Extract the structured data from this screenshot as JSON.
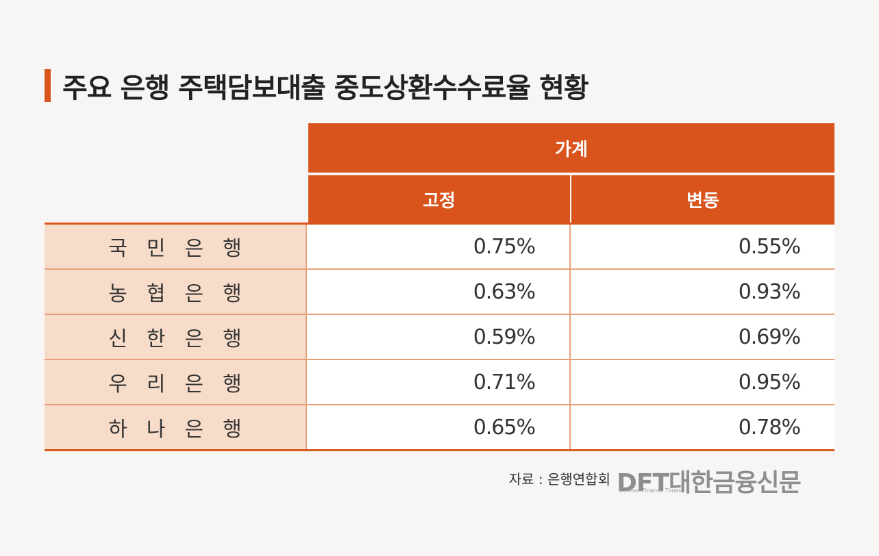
{
  "title": "주요 은행 주택담보대출 중도상환수수료율 현황",
  "colors": {
    "accent": "#d9531c",
    "header_bg": "#d9531c",
    "bank_cell_bg": "#f6dcc9",
    "value_cell_bg": "#ffffff"
  },
  "chart_data": {
    "type": "table",
    "title": "주요 은행 주택담보대출 중도상환수수료율 현황",
    "header_group": "가계",
    "columns": [
      "고정",
      "변동"
    ],
    "rows": [
      {
        "bank": "국민은행",
        "fixed": "0.75%",
        "variable": "0.55%"
      },
      {
        "bank": "농협은행",
        "fixed": "0.63%",
        "variable": "0.93%"
      },
      {
        "bank": "신한은행",
        "fixed": "0.59%",
        "variable": "0.69%"
      },
      {
        "bank": "우리은행",
        "fixed": "0.71%",
        "variable": "0.95%"
      },
      {
        "bank": "하나은행",
        "fixed": "0.65%",
        "variable": "0.78%"
      }
    ]
  },
  "source": "자료 : 은행연합회",
  "logo": {
    "main": "DFT대한금융신문",
    "sub": "Daehan Finance Times"
  }
}
